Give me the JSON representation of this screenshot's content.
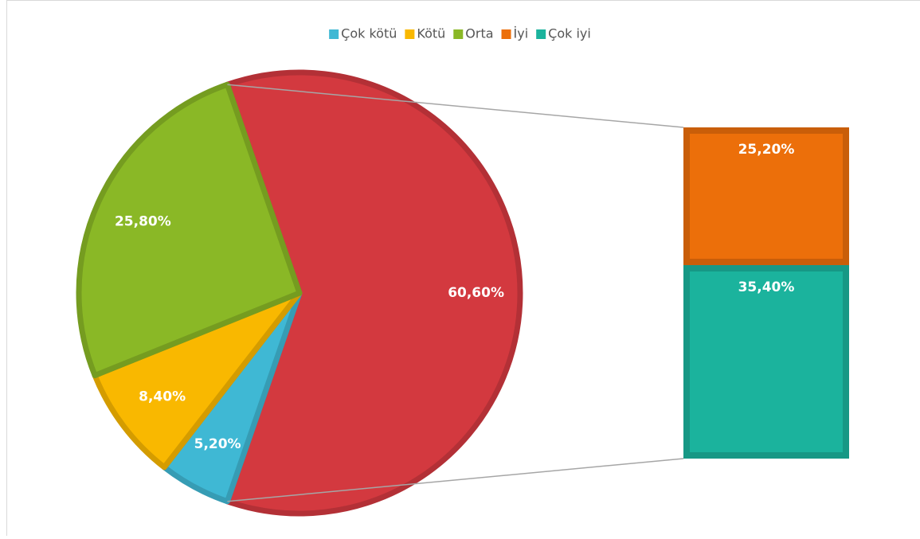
{
  "chart_data": {
    "type": "bar-of-pie",
    "pie": {
      "categories": [
        "Çok kötü",
        "Kötü",
        "Orta"
      ],
      "values": [
        5.2,
        8.4,
        25.8
      ],
      "value_labels": [
        "5,20%",
        "8,40%",
        "25,80%"
      ],
      "colors": [
        "#3fb8d4",
        "#f9b800",
        "#8ab826"
      ]
    },
    "other": {
      "value": 60.6,
      "label": "60,60%",
      "color": "#d3393f"
    },
    "bar": {
      "categories": [
        "İyi",
        "Çok iyi"
      ],
      "values": [
        25.2,
        35.4
      ],
      "value_labels": [
        "25,20%",
        "35,40%"
      ],
      "colors": [
        "#ec6f0a",
        "#1bb39d"
      ]
    },
    "legend": "top"
  }
}
